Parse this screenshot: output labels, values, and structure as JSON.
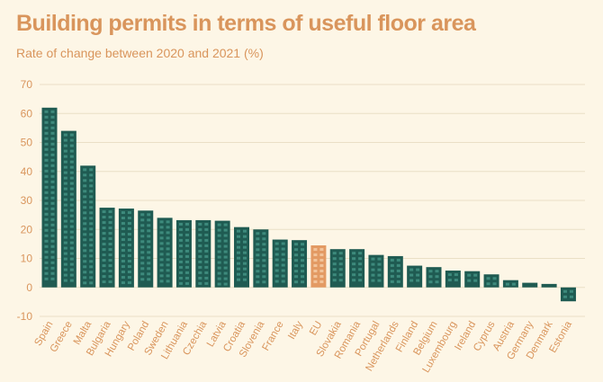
{
  "chart_data": {
    "type": "bar",
    "title": "Building permits in terms of useful floor area",
    "subtitle": "Rate of change between 2020 and 2021 (%)",
    "categories": [
      "Spain",
      "Greece",
      "Malta",
      "Bulgaria",
      "Hungary",
      "Poland",
      "Sweden",
      "Lithuania",
      "Czechia",
      "Latvia",
      "Croatia",
      "Slovenia",
      "France",
      "Italy",
      "EU",
      "Slovakia",
      "Romania",
      "Portugal",
      "Netherlands",
      "Finland",
      "Belgium",
      "Luxembourg",
      "Ireland",
      "Cyprus",
      "Austria",
      "Germany",
      "Denmark",
      "Estonia"
    ],
    "values": [
      62,
      54,
      42,
      27.5,
      27.2,
      26.5,
      24,
      23.2,
      23.2,
      23,
      20.8,
      20,
      16.5,
      16.3,
      14.5,
      13.2,
      13.2,
      11.2,
      10.8,
      7.5,
      7,
      5.8,
      5.6,
      4.5,
      2.5,
      1.6,
      1.2,
      -4.8
    ],
    "highlight": "EU",
    "ylim": [
      -10,
      70
    ],
    "yticks": [
      -10,
      0,
      10,
      20,
      30,
      40,
      50,
      60,
      70
    ],
    "colors": {
      "bar": "#1f5b52",
      "window": "#3d8a7c",
      "highlight": "#e39a63",
      "highlight_window": "#f2c49b",
      "text": "#d9955c",
      "grid": "#eadfc6"
    }
  }
}
